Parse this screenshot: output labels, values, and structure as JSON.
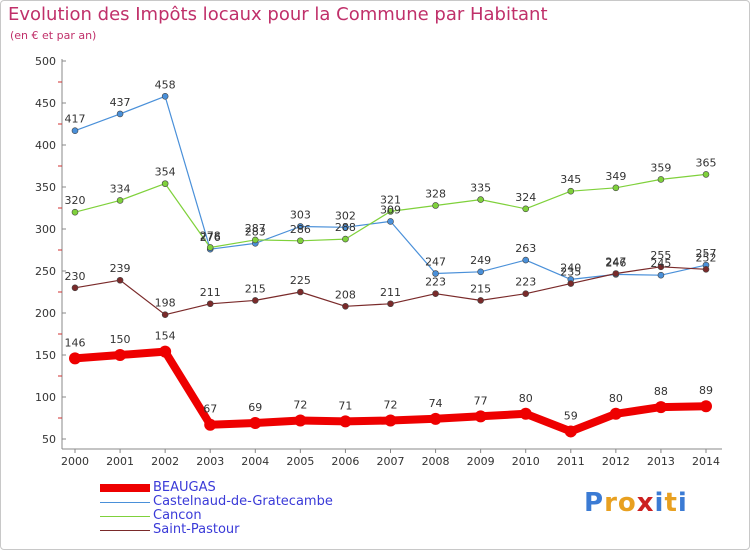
{
  "header": {
    "title": "Evolution des Impôts locaux pour la Commune par Habitant",
    "subtitle": "(en € et par an)"
  },
  "brand": {
    "letters": [
      "P",
      "r",
      "o",
      "x",
      "i",
      "t",
      "i"
    ],
    "colors": [
      "#3b7bd4",
      "#e8a020",
      "#e8a020",
      "#cc2020",
      "#3b7bd4",
      "#e8a020",
      "#3b7bd4"
    ]
  },
  "chart_data": {
    "type": "line",
    "title": "Evolution des Impôts locaux pour la Commune par Habitant",
    "subtitle": "(en € et par an)",
    "xlabel": "",
    "ylabel": "",
    "x": [
      "2000",
      "2001",
      "2002",
      "2003",
      "2004",
      "2005",
      "2006",
      "2007",
      "2008",
      "2009",
      "2010",
      "2011",
      "2012",
      "2013",
      "2014"
    ],
    "ylim": [
      50,
      500
    ],
    "yticks": [
      50,
      100,
      150,
      200,
      250,
      300,
      350,
      400,
      450,
      500
    ],
    "grid": false,
    "legend_position": "bottom-left",
    "series": [
      {
        "name": "BEAUGAS",
        "color": "#ee0000",
        "values": [
          146,
          150,
          154,
          67,
          69,
          72,
          71,
          72,
          74,
          77,
          80,
          59,
          80,
          88,
          89
        ],
        "labels": [
          "146",
          "150",
          "154",
          "67",
          "69",
          "72",
          "71",
          "72",
          "74",
          "77",
          "80",
          "59",
          "80",
          "88",
          "89"
        ]
      },
      {
        "name": "Castelnaud-de-Gratecambe",
        "color": "#4a90d9",
        "values": [
          417,
          437,
          458,
          276,
          283,
          303,
          302,
          309,
          247,
          249,
          263,
          240,
          246,
          245,
          257
        ],
        "labels": [
          "417",
          "437",
          "458",
          "276",
          "283",
          "303",
          "302",
          "309",
          "247",
          "249",
          "263",
          "240",
          "246",
          "245",
          "257"
        ]
      },
      {
        "name": "Cancon",
        "color": "#7fd13b",
        "values": [
          320,
          334,
          354,
          278,
          287,
          286,
          288,
          321,
          328,
          335,
          324,
          345,
          349,
          359,
          365
        ],
        "labels": [
          "320",
          "334",
          "354",
          "278",
          "287",
          "286",
          "288",
          "321",
          "328",
          "335",
          "324",
          "345",
          "349",
          "359",
          "365"
        ]
      },
      {
        "name": "Saint-Pastour",
        "color": "#7a2a2a",
        "values": [
          230,
          239,
          198,
          211,
          215,
          225,
          208,
          211,
          223,
          215,
          223,
          235,
          247,
          255,
          252
        ],
        "labels": [
          "230",
          "239",
          "198",
          "211",
          "215",
          "225",
          "208",
          "211",
          "223",
          "215",
          "223",
          "235",
          "247",
          "255",
          "252"
        ]
      }
    ]
  }
}
